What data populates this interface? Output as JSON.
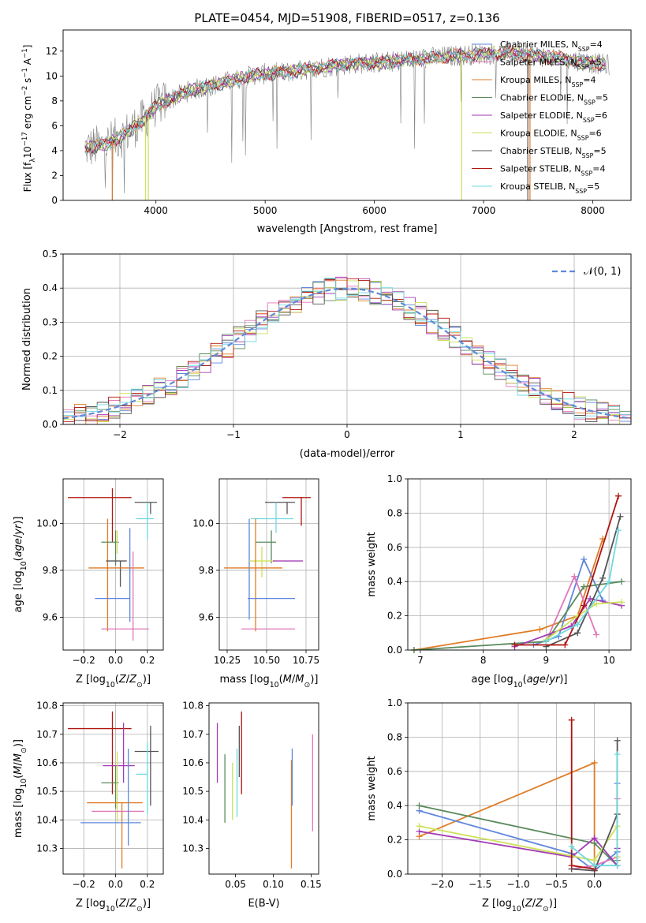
{
  "colors": {
    "chabrier_miles": "#5f87dd",
    "salpeter_miles": "#e276b8",
    "kroupa_miles": "#e07c27",
    "chabrier_elodie": "#5a8a5c",
    "salpeter_elodie": "#a33bb5",
    "kroupa_elodie": "#cde057",
    "chabrier_stelib": "#555555",
    "salpeter_stelib": "#b0140f",
    "kroupa_stelib": "#6fd8e0",
    "gaussian": "#5f8ad8",
    "grid": "#b0b0b0"
  },
  "chart_data": [
    {
      "id": "spectrum",
      "type": "line",
      "title": "PLATE=0454, MJD=51908, FIBERID=0517, z=0.136",
      "xlabel": "wavelength [Angstrom, rest frame]",
      "ylabel": "Flux [f_λ10^-17 erg cm^-2 s^-1 A^-1]",
      "xlim": [
        3150,
        8350
      ],
      "ylim": [
        0,
        13.7
      ],
      "xticks": [
        4000,
        5000,
        6000,
        7000,
        8000
      ],
      "yticks": [
        0,
        2,
        4,
        6,
        8,
        10,
        12
      ],
      "grid": false,
      "legend_position": "upper right",
      "series": [
        {
          "name": "Chabrier MILES, N_SSP=4",
          "key": "chabrier_miles"
        },
        {
          "name": "Salpeter MILES, N_SSP=5",
          "key": "salpeter_miles"
        },
        {
          "name": "Kroupa MILES, N_SSP=4",
          "key": "kroupa_miles"
        },
        {
          "name": "Chabrier ELODIE, N_SSP=5",
          "key": "chabrier_elodie"
        },
        {
          "name": "Salpeter ELODIE, N_SSP=6",
          "key": "salpeter_elodie"
        },
        {
          "name": "Kroupa ELODIE, N_SSP=6",
          "key": "kroupa_elodie"
        },
        {
          "name": "Chabrier STELIB, N_SSP=5",
          "key": "chabrier_stelib"
        },
        {
          "name": "Salpeter STELIB, N_SSP=4",
          "key": "salpeter_stelib"
        },
        {
          "name": "Kroupa STELIB, N_SSP=5",
          "key": "kroupa_stelib"
        }
      ],
      "continuum": {
        "x": [
          3350,
          3500,
          3700,
          3900,
          4000,
          4300,
          4600,
          4900,
          5200,
          5500,
          5800,
          6100,
          6400,
          6700,
          7000,
          7300,
          7600,
          7900,
          8100
        ],
        "y": [
          4.2,
          4.4,
          5.2,
          6.6,
          7.6,
          8.8,
          9.4,
          10.1,
          10.3,
          10.7,
          11.0,
          11.1,
          11.4,
          11.6,
          11.8,
          11.8,
          11.5,
          11.2,
          10.9
        ]
      }
    },
    {
      "id": "residuals",
      "type": "histogram",
      "xlabel": "(data-model)/error",
      "ylabel": "Normed distribution",
      "xlim": [
        -2.5,
        2.5
      ],
      "ylim": [
        0,
        0.5
      ],
      "xticks": [
        -2,
        -1,
        0,
        1,
        2
      ],
      "yticks": [
        0.0,
        0.1,
        0.2,
        0.3,
        0.4,
        0.5
      ],
      "grid": true,
      "legend_position": "upper right",
      "legend_label": "𝒩(0, 1)",
      "bin_width": 0.1,
      "gaussian": {
        "mean": 0,
        "sigma": 1
      }
    },
    {
      "id": "age_vs_z",
      "type": "errorbar",
      "xlabel": "Z [log10(Z/Z☉)]",
      "ylabel": "age  [log10(age/yr)]",
      "xlim": [
        -0.33,
        0.3
      ],
      "ylim": [
        9.46,
        10.19
      ],
      "xticks": [
        -0.2,
        0.0,
        0.2
      ],
      "xticklabels": [
        "−0.2",
        "0.0",
        "0.2"
      ],
      "yticks": [
        9.6,
        9.8,
        10.0
      ],
      "grid": true,
      "points": [
        {
          "key": "salpeter_stelib",
          "x": -0.02,
          "xerr": [
            0.28,
            0.12
          ],
          "y": 10.11,
          "yerr": [
            0.19,
            0.04
          ]
        },
        {
          "key": "chabrier_stelib",
          "x": 0.22,
          "xerr": [
            0.1,
            0.04
          ],
          "y": 10.09,
          "yerr": [
            0.05,
            0.0
          ]
        },
        {
          "key": "kroupa_stelib",
          "x": 0.2,
          "xerr": [
            0.07,
            0.04
          ],
          "y": 10.02,
          "yerr": [
            0.09,
            0.07
          ]
        },
        {
          "key": "kroupa_miles",
          "x": -0.05,
          "xerr": [
            0.0,
            0.0
          ],
          "y": 10.02,
          "yerr": [
            0.48,
            0.0
          ]
        },
        {
          "key": "chabrier_elodie",
          "x": 0.0,
          "xerr": [
            0.09,
            0.02
          ],
          "y": 9.92,
          "yerr": [
            0.1,
            0.05
          ]
        },
        {
          "key": "kroupa_elodie",
          "x": 0.01,
          "xerr": [
            0.0,
            0.0
          ],
          "y": 9.97,
          "yerr": [
            0.1,
            0.0
          ]
        },
        {
          "key": "chabrier_stelib",
          "x": 0.03,
          "xerr": [
            0.09,
            0.04
          ],
          "y": 9.84,
          "yerr": [
            0.11,
            0.0
          ]
        },
        {
          "key": "kroupa_miles",
          "x": 0.05,
          "xerr": [
            0.22,
            0.13
          ],
          "y": 9.81,
          "yerr": [
            0.0,
            0.0
          ]
        },
        {
          "key": "chabrier_miles",
          "x": 0.09,
          "xerr": [
            0.22,
            0.0
          ],
          "y": 9.68,
          "yerr": [
            0.1,
            0.3
          ]
        },
        {
          "key": "salpeter_miles",
          "x": 0.11,
          "xerr": [
            0.2,
            0.1
          ],
          "y": 9.55,
          "yerr": [
            0.05,
            0.33
          ]
        },
        {
          "key": "salpeter_elodie",
          "x": 0.02,
          "xerr": [
            0.0,
            0.0
          ],
          "y": 9.8,
          "yerr": [
            0.0,
            0.0
          ]
        }
      ]
    },
    {
      "id": "age_vs_mass",
      "type": "errorbar",
      "xlabel": "mass [log10(M/M☉)]",
      "ylabel": "",
      "xlim": [
        10.2,
        10.83
      ],
      "ylim": [
        9.46,
        10.19
      ],
      "xticks": [
        10.25,
        10.5,
        10.75
      ],
      "yticks": [
        9.6,
        9.8,
        10.0
      ],
      "grid": true,
      "points": [
        {
          "key": "salpeter_stelib",
          "x": 10.72,
          "xerr": [
            0.12,
            0.06
          ],
          "y": 10.11,
          "yerr": [
            0.12,
            0.0
          ]
        },
        {
          "key": "chabrier_stelib",
          "x": 10.63,
          "xerr": [
            0.14,
            0.05
          ],
          "y": 10.09,
          "yerr": [
            0.05,
            0.0
          ]
        },
        {
          "key": "kroupa_stelib",
          "x": 10.56,
          "xerr": [
            0.16,
            0.11
          ],
          "y": 10.02,
          "yerr": [
            0.06,
            0.07
          ]
        },
        {
          "key": "chabrier_miles",
          "x": 10.39,
          "xerr": [
            0.0,
            0.0
          ],
          "y": 10.02,
          "yerr": [
            0.43,
            0.0
          ]
        },
        {
          "key": "chabrier_elodie",
          "x": 10.53,
          "xerr": [
            0.1,
            0.03
          ],
          "y": 9.92,
          "yerr": [
            0.09,
            0.05
          ]
        },
        {
          "key": "kroupa_elodie",
          "x": 10.47,
          "xerr": [
            0.08,
            0.09
          ],
          "y": 9.84,
          "yerr": [
            0.07,
            0.06
          ]
        },
        {
          "key": "salpeter_elodie",
          "x": 10.6,
          "xerr": [
            0.06,
            0.13
          ],
          "y": 9.84,
          "yerr": [
            0.0,
            0.0
          ]
        },
        {
          "key": "kroupa_miles",
          "x": 10.43,
          "xerr": [
            0.2,
            0.17
          ],
          "y": 9.81,
          "yerr": [
            0.27,
            0.21
          ]
        },
        {
          "key": "chabrier_miles",
          "x": 10.51,
          "xerr": [
            0.13,
            0.17
          ],
          "y": 9.68,
          "yerr": [
            0.0,
            0.0
          ]
        },
        {
          "key": "salpeter_miles",
          "x": 10.54,
          "xerr": [
            0.2,
            0.14
          ],
          "y": 9.55,
          "yerr": [
            0.0,
            0.0
          ]
        }
      ]
    },
    {
      "id": "weight_vs_age",
      "type": "line",
      "xlabel": "age  [log10(age/yr)]",
      "ylabel": "mass weight",
      "xlim": [
        6.8,
        10.35
      ],
      "ylim": [
        0,
        1.0
      ],
      "xticks": [
        7,
        8,
        9,
        10
      ],
      "yticks": [
        0.0,
        0.2,
        0.4,
        0.6,
        0.8,
        1.0
      ],
      "grid": true,
      "series": [
        {
          "key": "kroupa_miles",
          "x": [
            6.9,
            8.9,
            9.5,
            9.9
          ],
          "y": [
            0.0,
            0.12,
            0.2,
            0.65
          ]
        },
        {
          "key": "chabrier_miles",
          "x": [
            8.8,
            9.2,
            9.6,
            9.9
          ],
          "y": [
            0.03,
            0.08,
            0.53,
            0.29
          ]
        },
        {
          "key": "salpeter_miles",
          "x": [
            9.0,
            9.45,
            9.8
          ],
          "y": [
            0.05,
            0.43,
            0.09
          ]
        },
        {
          "key": "chabrier_elodie",
          "x": [
            6.9,
            9.0,
            9.6,
            10.2
          ],
          "y": [
            0.0,
            0.05,
            0.37,
            0.4
          ]
        },
        {
          "key": "salpeter_elodie",
          "x": [
            8.5,
            9.4,
            9.7,
            10.2
          ],
          "y": [
            0.02,
            0.14,
            0.3,
            0.26
          ]
        },
        {
          "key": "kroupa_elodie",
          "x": [
            9.0,
            9.5,
            9.8,
            10.2
          ],
          "y": [
            0.06,
            0.2,
            0.27,
            0.28
          ]
        },
        {
          "key": "chabrier_stelib",
          "x": [
            9.0,
            9.5,
            9.9,
            10.18
          ],
          "y": [
            0.02,
            0.1,
            0.42,
            0.78
          ]
        },
        {
          "key": "salpeter_stelib",
          "x": [
            8.5,
            9.3,
            9.6,
            10.15
          ],
          "y": [
            0.03,
            0.03,
            0.26,
            0.9
          ]
        },
        {
          "key": "kroupa_stelib",
          "x": [
            9.0,
            9.5,
            10.0,
            10.15
          ],
          "y": [
            0.05,
            0.15,
            0.4,
            0.7
          ]
        }
      ]
    },
    {
      "id": "mass_vs_z",
      "type": "errorbar",
      "xlabel": "Z [log10(Z/Z☉)]",
      "ylabel": "mass [log10(M/M☉)]",
      "xlim": [
        -0.33,
        0.3
      ],
      "ylim": [
        10.21,
        10.81
      ],
      "xticks": [
        -0.2,
        0.0,
        0.2
      ],
      "xticklabels": [
        "−0.2",
        "0.0",
        "0.2"
      ],
      "yticks": [
        10.3,
        10.4,
        10.5,
        10.6,
        10.7,
        10.8
      ],
      "grid": true,
      "points": [
        {
          "key": "salpeter_stelib",
          "x": -0.02,
          "xerr": [
            0.28,
            0.12
          ],
          "y": 10.72,
          "yerr": [
            0.23,
            0.06
          ]
        },
        {
          "key": "salpeter_elodie",
          "x": 0.05,
          "xerr": [
            0.13,
            0.07
          ],
          "y": 10.59,
          "yerr": [
            0.06,
            0.15
          ]
        },
        {
          "key": "chabrier_stelib",
          "x": 0.22,
          "xerr": [
            0.1,
            0.05
          ],
          "y": 10.64,
          "yerr": [
            0.19,
            0.09
          ]
        },
        {
          "key": "kroupa_stelib",
          "x": 0.2,
          "xerr": [
            0.07,
            0.0
          ],
          "y": 10.56,
          "yerr": [
            0.14,
            0.11
          ]
        },
        {
          "key": "chabrier_elodie",
          "x": 0.0,
          "xerr": [
            0.09,
            0.02
          ],
          "y": 10.53,
          "yerr": [
            0.09,
            0.06
          ]
        },
        {
          "key": "kroupa_elodie",
          "x": 0.01,
          "xerr": [
            0.0,
            0.0
          ],
          "y": 10.59,
          "yerr": [
            0.2,
            0.05
          ]
        },
        {
          "key": "kroupa_miles",
          "x": 0.04,
          "xerr": [
            0.22,
            0.13
          ],
          "y": 10.46,
          "yerr": [
            0.23,
            0.0
          ]
        },
        {
          "key": "salpeter_miles",
          "x": 0.05,
          "xerr": [
            0.2,
            0.13
          ],
          "y": 10.43,
          "yerr": [
            0.0,
            0.0
          ]
        },
        {
          "key": "chabrier_miles",
          "x": 0.08,
          "xerr": [
            0.3,
            0.08
          ],
          "y": 10.39,
          "yerr": [
            0.08,
            0.26
          ]
        }
      ]
    },
    {
      "id": "mass_vs_ebv",
      "type": "errorbar",
      "xlabel": "E(B-V)",
      "ylabel": "",
      "xlim": [
        0.015,
        0.16
      ],
      "ylim": [
        10.21,
        10.81
      ],
      "xticks": [
        0.05,
        0.1,
        0.15
      ],
      "xticklabels": [
        "0.05",
        "0.10",
        "0.15"
      ],
      "yticks": [
        10.3,
        10.4,
        10.5,
        10.6,
        10.7,
        10.8
      ],
      "grid": false,
      "points": [
        {
          "key": "salpeter_elodie",
          "x": 0.026,
          "y": 10.63,
          "yerr": [
            0.1,
            0.11
          ]
        },
        {
          "key": "chabrier_elodie",
          "x": 0.036,
          "y": 10.51,
          "yerr": [
            0.12,
            0.12
          ]
        },
        {
          "key": "kroupa_elodie",
          "x": 0.046,
          "y": 10.5,
          "yerr": [
            0.1,
            0.1
          ]
        },
        {
          "key": "kroupa_stelib",
          "x": 0.052,
          "y": 10.55,
          "yerr": [
            0.14,
            0.1
          ]
        },
        {
          "key": "chabrier_stelib",
          "x": 0.055,
          "y": 10.64,
          "yerr": [
            0.09,
            0.09
          ]
        },
        {
          "key": "salpeter_stelib",
          "x": 0.058,
          "y": 10.64,
          "yerr": [
            0.15,
            0.14
          ]
        },
        {
          "key": "kroupa_miles",
          "x": 0.124,
          "y": 10.42,
          "yerr": [
            0.19,
            0.19
          ]
        },
        {
          "key": "chabrier_miles",
          "x": 0.125,
          "y": 10.55,
          "yerr": [
            0.1,
            0.1
          ]
        },
        {
          "key": "salpeter_miles",
          "x": 0.152,
          "y": 10.53,
          "yerr": [
            0.17,
            0.17
          ]
        }
      ]
    },
    {
      "id": "weight_vs_z",
      "type": "line",
      "xlabel": "Z [log10(Z/Z☉)]",
      "ylabel": "mass weight",
      "xlim": [
        -2.45,
        0.48
      ],
      "ylim": [
        0,
        1.0
      ],
      "xticks": [
        -2.0,
        -1.5,
        -1.0,
        -0.5,
        0.0
      ],
      "xticklabels": [
        "−2.0",
        "−1.5",
        "−1.0",
        "−0.5",
        "0.0"
      ],
      "yticks": [
        0.0,
        0.2,
        0.4,
        0.6,
        0.8,
        1.0
      ],
      "grid": true,
      "series": [
        {
          "key": "kroupa_miles",
          "x": [
            -2.3,
            0.0,
            0.0
          ],
          "y": [
            0.22,
            0.65,
            0.02
          ]
        },
        {
          "key": "chabrier_miles",
          "x": [
            -2.3,
            -0.3,
            0.0,
            0.3,
            0.3
          ],
          "y": [
            0.37,
            0.12,
            0.02,
            0.13,
            0.53
          ]
        },
        {
          "key": "salpeter_miles",
          "x": [
            -0.3,
            0.0,
            0.3,
            0.3
          ],
          "y": [
            0.03,
            0.05,
            0.1,
            0.44
          ]
        },
        {
          "key": "chabrier_elodie",
          "x": [
            -2.3,
            0.0,
            0.3,
            0.3
          ],
          "y": [
            0.4,
            0.18,
            0.05,
            0.08
          ]
        },
        {
          "key": "salpeter_elodie",
          "x": [
            -2.3,
            -0.3,
            0.0,
            0.3,
            0.3
          ],
          "y": [
            0.25,
            0.1,
            0.21,
            0.05,
            0.15
          ]
        },
        {
          "key": "kroupa_elodie",
          "x": [
            -2.3,
            0.0,
            0.3,
            0.3
          ],
          "y": [
            0.28,
            0.08,
            0.28,
            0.1
          ]
        },
        {
          "key": "chabrier_stelib",
          "x": [
            -0.3,
            0.0,
            0.3,
            0.3
          ],
          "y": [
            0.03,
            0.02,
            0.35,
            0.78
          ]
        },
        {
          "key": "salpeter_stelib",
          "x": [
            -0.3,
            -0.3,
            0.0
          ],
          "y": [
            0.9,
            0.05,
            0.03
          ]
        },
        {
          "key": "kroupa_stelib",
          "x": [
            -0.3,
            0.0,
            0.3,
            0.3
          ],
          "y": [
            0.16,
            0.05,
            0.05,
            0.7
          ]
        }
      ]
    }
  ]
}
